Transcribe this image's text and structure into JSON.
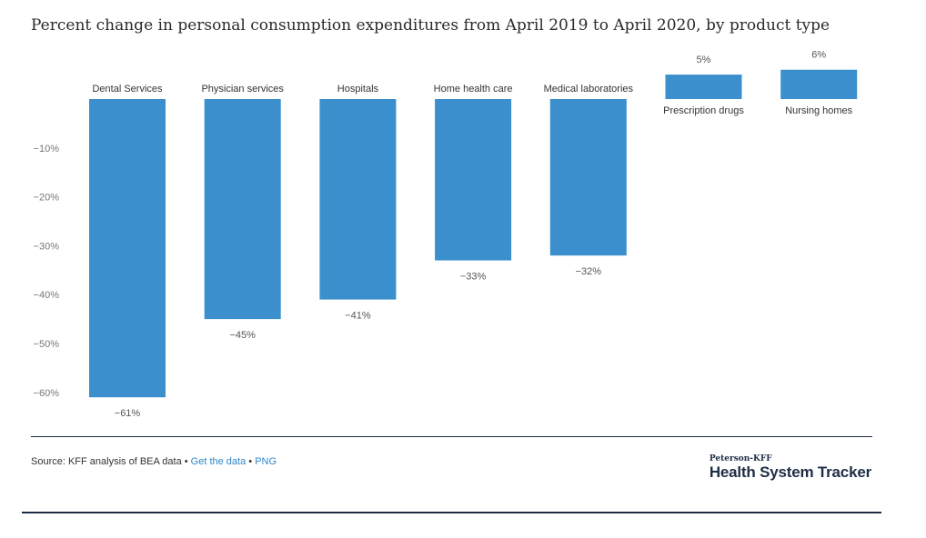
{
  "title": "Percent change in personal consumption expenditures from April 2019 to April 2020, by product type",
  "chart_data": {
    "type": "bar",
    "categories": [
      "Dental Services",
      "Physician services",
      "Hospitals",
      "Home health care",
      "Medical laboratories",
      "Prescription drugs",
      "Nursing homes"
    ],
    "values": [
      -61,
      -45,
      -41,
      -33,
      -32,
      5,
      6
    ],
    "value_labels": [
      "−61%",
      "−45%",
      "−41%",
      "−33%",
      "−32%",
      "5%",
      "6%"
    ],
    "yticks": [
      -10,
      -20,
      -30,
      -40,
      -50,
      -60
    ],
    "ytick_labels": [
      "−10%",
      "−20%",
      "−30%",
      "−40%",
      "−50%",
      "−60%"
    ],
    "ylim": [
      -66,
      7
    ],
    "grid": false,
    "bar_color": "#3a8fcc"
  },
  "footer": {
    "source_text": "Source: KFF analysis of BEA data",
    "separator": " • ",
    "get_data_label": "Get the data",
    "png_label": "PNG"
  },
  "logo": {
    "small": "Peterson-KFF",
    "big": "Health System Tracker"
  }
}
